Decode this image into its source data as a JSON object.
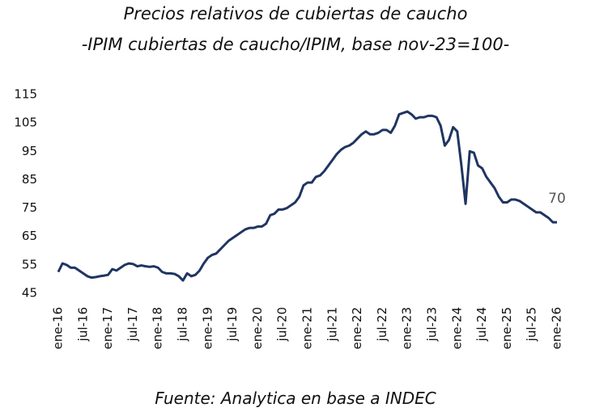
{
  "chart_data": {
    "type": "line",
    "title": "Precios relativos de cubiertas de caucho",
    "subtitle": "-IPIM cubiertas de caucho/IPIM, base nov-23=100-",
    "source": "Fuente: Analytica en base a INDEC",
    "categories": [
      "ene-16",
      null,
      null,
      null,
      null,
      null,
      "jul-16",
      null,
      null,
      null,
      null,
      null,
      "ene-17",
      null,
      null,
      null,
      null,
      null,
      "jul-17",
      null,
      null,
      null,
      null,
      null,
      "ene-18",
      null,
      null,
      null,
      null,
      null,
      "jul-18",
      null,
      null,
      null,
      null,
      null,
      "ene-19",
      null,
      null,
      null,
      null,
      null,
      "jul-19",
      null,
      null,
      null,
      null,
      null,
      "ene-20",
      null,
      null,
      null,
      null,
      null,
      "jul-20",
      null,
      null,
      null,
      null,
      null,
      "ene-21",
      null,
      null,
      null,
      null,
      null,
      "jul-21",
      null,
      null,
      null,
      null,
      null,
      "ene-22",
      null,
      null,
      null,
      null,
      null,
      "jul-22",
      null,
      null,
      null,
      null,
      null,
      "ene-23",
      null,
      null,
      null,
      null,
      null,
      "jul-23",
      null,
      null,
      null,
      null,
      null,
      "ene-24",
      null,
      null,
      null,
      null,
      null,
      "jul-24",
      null,
      null,
      null,
      null,
      null,
      "ene-25",
      null,
      null,
      null,
      null,
      null,
      "jul-25",
      null,
      null,
      null,
      null,
      null,
      "ene-26"
    ],
    "series": [
      {
        "color": "#1f3562",
        "values": [
          52.5,
          55.5,
          55,
          54,
          54,
          53,
          52,
          51,
          50.5,
          50.7,
          51,
          51.2,
          51.5,
          53.5,
          53,
          54,
          55,
          55.5,
          55.3,
          54.5,
          54.8,
          54.5,
          54.3,
          54.5,
          54,
          52.5,
          52,
          52,
          51.8,
          51,
          49.5,
          52,
          51,
          51.5,
          53,
          55.5,
          57.5,
          58.5,
          59,
          60.5,
          62,
          63.5,
          64.5,
          65.5,
          66.5,
          67.5,
          68,
          68,
          68.5,
          68.5,
          69.5,
          72.5,
          73,
          74.5,
          74.5,
          75,
          76,
          77,
          79,
          83,
          84,
          84,
          86,
          86.5,
          88,
          90,
          92,
          94,
          95.5,
          96.5,
          97,
          98,
          99.5,
          101,
          102,
          101,
          101,
          101.5,
          102.5,
          102.5,
          101.5,
          104,
          108,
          108.5,
          109,
          108,
          106.5,
          107,
          107,
          107.5,
          107.5,
          107,
          104,
          97,
          99,
          103.5,
          102,
          90,
          76.5,
          95,
          94.5,
          90,
          89,
          86,
          84,
          82,
          79,
          77,
          77,
          78,
          78,
          77.5,
          76.5,
          75.5,
          74.5,
          73.5,
          73.5,
          72.5,
          71.5,
          70,
          70
        ]
      }
    ],
    "ylim": [
      45,
      115
    ],
    "yticks": [
      45,
      55,
      65,
      75,
      85,
      95,
      105,
      115
    ]
  }
}
